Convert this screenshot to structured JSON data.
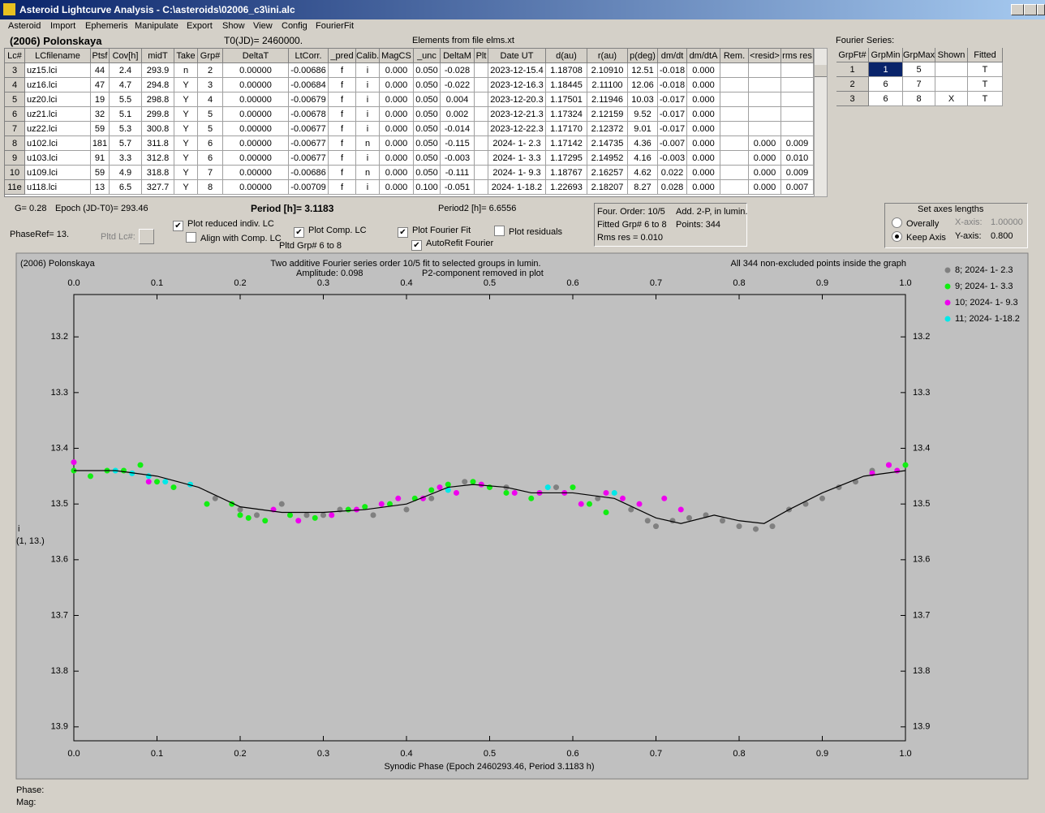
{
  "window": {
    "title": "Asteroid Lightcurve Analysis - C:\\asteroids\\02006_c3\\ini.alc",
    "menu": [
      "Asteroid",
      "Import",
      "Ephemeris",
      "Manipulate",
      "Export",
      "Show",
      "View",
      "Config",
      "FourierFit"
    ]
  },
  "header": {
    "asteroid": "(2006) Polonskaya",
    "t0": "T0(JD)= 2460000.",
    "elements": "Elements from file elms.xt"
  },
  "table": {
    "columns": [
      "Lc#",
      "LCfilename",
      "Ptsf",
      "Cov[h]",
      "midT",
      "Take",
      "Grp#",
      "DeltaT",
      "LtCorr.",
      "_pred",
      "Calib.",
      "MagCS",
      "_unc",
      "DeltaM",
      "Plt",
      "Date UT",
      "d(au)",
      "r(au)",
      "p(deg)",
      "dm/dt",
      "dm/dtA",
      "Rem.",
      "<resid>",
      "rms res"
    ],
    "rows": [
      [
        "3",
        "uz15.lci",
        "44",
        "2.4",
        "293.9",
        "n",
        "2",
        "0.00000",
        "-0.00686",
        "f",
        "i",
        "0.000",
        "0.050",
        "-0.028",
        null,
        "2023-12-15.4",
        "1.18708",
        "2.10910",
        "12.51",
        "-0.018",
        "0.000",
        null,
        null,
        null
      ],
      [
        "4",
        "uz16.lci",
        "47",
        "4.7",
        "294.8",
        "Y",
        "3",
        "0.00000",
        "-0.00684",
        "f",
        "i",
        "0.000",
        "0.050",
        "-0.022",
        null,
        "2023-12-16.3",
        "1.18445",
        "2.11100",
        "12.06",
        "-0.018",
        "0.000",
        null,
        null,
        null
      ],
      [
        "5",
        "uz20.lci",
        "19",
        "5.5",
        "298.8",
        "Y",
        "4",
        "0.00000",
        "-0.00679",
        "f",
        "i",
        "0.000",
        "0.050",
        "0.004",
        null,
        "2023-12-20.3",
        "1.17501",
        "2.11946",
        "10.03",
        "-0.017",
        "0.000",
        null,
        null,
        null
      ],
      [
        "6",
        "uz21.lci",
        "32",
        "5.1",
        "299.8",
        "Y",
        "5",
        "0.00000",
        "-0.00678",
        "f",
        "i",
        "0.000",
        "0.050",
        "0.002",
        null,
        "2023-12-21.3",
        "1.17324",
        "2.12159",
        "9.52",
        "-0.017",
        "0.000",
        null,
        null,
        null
      ],
      [
        "7",
        "uz22.lci",
        "59",
        "5.3",
        "300.8",
        "Y",
        "5",
        "0.00000",
        "-0.00677",
        "f",
        "i",
        "0.000",
        "0.050",
        "-0.014",
        null,
        "2023-12-22.3",
        "1.17170",
        "2.12372",
        "9.01",
        "-0.017",
        "0.000",
        null,
        null,
        null
      ],
      [
        "8",
        "u102.lci",
        "181",
        "5.7",
        "311.8",
        "Y",
        "6",
        "0.00000",
        "-0.00677",
        "f",
        "n",
        "0.000",
        "0.050",
        "-0.115",
        null,
        "2024- 1- 2.3",
        "1.17142",
        "2.14735",
        "4.36",
        "-0.007",
        "0.000",
        null,
        "0.000",
        "0.009"
      ],
      [
        "9",
        "u103.lci",
        "91",
        "3.3",
        "312.8",
        "Y",
        "6",
        "0.00000",
        "-0.00677",
        "f",
        "i",
        "0.000",
        "0.050",
        "-0.003",
        null,
        "2024- 1- 3.3",
        "1.17295",
        "2.14952",
        "4.16",
        "-0.003",
        "0.000",
        null,
        "0.000",
        "0.010"
      ],
      [
        "10",
        "u109.lci",
        "59",
        "4.9",
        "318.8",
        "Y",
        "7",
        "0.00000",
        "-0.00686",
        "f",
        "n",
        "0.000",
        "0.050",
        "-0.111",
        null,
        "2024- 1- 9.3",
        "1.18767",
        "2.16257",
        "4.62",
        "0.022",
        "0.000",
        null,
        "0.000",
        "0.009"
      ],
      [
        "11e",
        "u118.lci",
        "13",
        "6.5",
        "327.7",
        "Y",
        "8",
        "0.00000",
        "-0.00709",
        "f",
        "i",
        "0.000",
        "0.100",
        "-0.051",
        null,
        "2024- 1-18.2",
        "1.22693",
        "2.18207",
        "8.27",
        "0.028",
        "0.000",
        null,
        "0.000",
        "0.007"
      ]
    ]
  },
  "fourier": {
    "title": "Fourier Series:",
    "columns": [
      "GrpFt#",
      "GrpMin",
      "GrpMax",
      "Shown",
      "Fitted"
    ],
    "rows": [
      [
        "1",
        "1",
        "5",
        null,
        "T"
      ],
      [
        "2",
        "6",
        "7",
        null,
        "T"
      ],
      [
        "3",
        "6",
        "8",
        "X",
        "T"
      ]
    ]
  },
  "controls": {
    "g": "G= 0.28",
    "epoch": "Epoch (JD-T0)= 293.46",
    "period": "Period [h]= 3.1183",
    "period2": "Period2 [h]= 6.6556",
    "phaseref": "PhaseRef= 13.",
    "pltd_lc": "Pltd Lc#:",
    "pltd_grp": "Pltd Grp#  6  to  8",
    "checkboxes": [
      {
        "label": "Plot reduced indiv. LC",
        "checked": true
      },
      {
        "label": "Align with Comp. LC",
        "checked": false
      },
      {
        "label": "Plot Comp. LC",
        "checked": true
      },
      {
        "label": "Plot Fourier Fit",
        "checked": true
      },
      {
        "label": "Plot residuals",
        "checked": false
      },
      {
        "label": "AutoRefit Fourier",
        "checked": true
      }
    ]
  },
  "fit_info": {
    "order": "Four. Order: 10/5",
    "add": "Add. 2-P, in lumin.",
    "fitted": "Fitted Grp# 6 to 8",
    "points": "Points: 344",
    "rms": "Rms res     = 0.010"
  },
  "axes_box": {
    "title": "Set axes lengths",
    "options": [
      {
        "label": "Overally",
        "selected": false
      },
      {
        "label": "Keep Axis",
        "selected": true
      }
    ],
    "x_label": "X-axis:",
    "x_value": "1.00000",
    "y_label": "Y-axis:",
    "y_value": "0.800"
  },
  "status": {
    "phase": "Phase:",
    "mag": "Mag:"
  },
  "chart_data": {
    "type": "scatter",
    "title": "(2006) Polonskaya",
    "subtitle": "Two additive Fourier series order 10/5 fit to selected groups in lumin.",
    "annotations": [
      "Amplitude: 0.098",
      "P2-component removed in plot",
      "All 344 non-excluded points inside the graph"
    ],
    "xlabel": "Synodic Phase (Epoch 2460293.46, Period 3.1183 h)",
    "ylabel": [
      "i",
      "(1, 13.)"
    ],
    "xlim": [
      0,
      1
    ],
    "ylim": [
      13.124,
      13.925
    ],
    "y_inverted": true,
    "xticks": [
      {
        "value": 0,
        "label": "0.0"
      },
      0.1,
      0.2,
      0.3,
      0.4,
      0.5,
      0.6,
      0.7,
      0.8,
      0.9,
      {
        "value": 1,
        "label": "1.0"
      }
    ],
    "yticks": [
      13.2,
      13.3,
      13.4,
      13.5,
      13.6,
      13.7,
      13.8,
      13.9
    ],
    "series": [
      {
        "name": "8; 2024- 1- 2.3",
        "color": "#808080",
        "x": [
          0.17,
          0.2,
          0.22,
          0.25,
          0.28,
          0.3,
          0.32,
          0.36,
          0.4,
          0.43,
          0.47,
          0.52,
          0.58,
          0.63,
          0.67,
          0.69,
          0.7,
          0.72,
          0.74,
          0.76,
          0.78,
          0.8,
          0.82,
          0.84,
          0.86,
          0.88,
          0.9,
          0.92,
          0.94,
          0.96,
          0.98
        ],
        "values": [
          13.49,
          13.51,
          13.52,
          13.5,
          13.52,
          13.52,
          13.51,
          13.52,
          13.51,
          13.49,
          13.46,
          13.47,
          13.47,
          13.49,
          13.51,
          13.53,
          13.54,
          13.53,
          13.525,
          13.52,
          13.53,
          13.54,
          13.545,
          13.54,
          13.51,
          13.5,
          13.49,
          13.47,
          13.46,
          13.44,
          13.43
        ]
      },
      {
        "name": "9; 2024- 1- 3.3",
        "color": "#11ee11",
        "x": [
          0,
          0.02,
          0.04,
          0.06,
          0.08,
          0.1,
          0.12,
          0.16,
          0.19,
          0.2,
          0.21,
          0.23,
          0.26,
          0.29,
          0.33,
          0.35,
          0.38,
          0.41,
          0.43,
          0.45,
          0.48,
          0.5,
          0.52,
          0.55,
          0.6,
          0.62,
          0.64,
          1
        ],
        "values": [
          13.44,
          13.45,
          13.44,
          13.44,
          13.43,
          13.46,
          13.47,
          13.5,
          13.5,
          13.52,
          13.525,
          13.53,
          13.52,
          13.525,
          13.51,
          13.505,
          13.5,
          13.49,
          13.475,
          13.465,
          13.46,
          13.47,
          13.48,
          13.49,
          13.47,
          13.5,
          13.515,
          13.43
        ]
      },
      {
        "name": "10; 2024- 1- 9.3",
        "color": "#ee00ee",
        "x": [
          0,
          0.09,
          0.24,
          0.27,
          0.31,
          0.34,
          0.37,
          0.39,
          0.42,
          0.44,
          0.46,
          0.49,
          0.53,
          0.56,
          0.59,
          0.61,
          0.64,
          0.66,
          0.68,
          0.71,
          0.73,
          0.96,
          0.98,
          0.99
        ],
        "values": [
          13.425,
          13.46,
          13.51,
          13.53,
          13.52,
          13.51,
          13.5,
          13.49,
          13.49,
          13.47,
          13.48,
          13.465,
          13.48,
          13.48,
          13.48,
          13.5,
          13.48,
          13.49,
          13.5,
          13.49,
          13.51,
          13.445,
          13.43,
          13.44
        ]
      },
      {
        "name": "11; 2024- 1-18.2",
        "color": "#00e8e8",
        "x": [
          0.05,
          0.07,
          0.09,
          0.11,
          0.14,
          0.45,
          0.57,
          0.65
        ],
        "values": [
          13.44,
          13.445,
          13.45,
          13.46,
          13.465,
          13.475,
          13.47,
          13.48
        ]
      }
    ],
    "fit": {
      "color": "#000000",
      "x": [
        0,
        0.05,
        0.1,
        0.15,
        0.2,
        0.25,
        0.3,
        0.35,
        0.4,
        0.45,
        0.48,
        0.52,
        0.55,
        0.6,
        0.65,
        0.7,
        0.73,
        0.77,
        0.8,
        0.83,
        0.86,
        0.9,
        0.95,
        1
      ],
      "values": [
        13.44,
        13.44,
        13.45,
        13.47,
        13.505,
        13.515,
        13.515,
        13.51,
        13.5,
        13.47,
        13.465,
        13.47,
        13.48,
        13.48,
        13.49,
        13.525,
        13.535,
        13.52,
        13.53,
        13.535,
        13.51,
        13.48,
        13.45,
        13.44
      ]
    }
  }
}
